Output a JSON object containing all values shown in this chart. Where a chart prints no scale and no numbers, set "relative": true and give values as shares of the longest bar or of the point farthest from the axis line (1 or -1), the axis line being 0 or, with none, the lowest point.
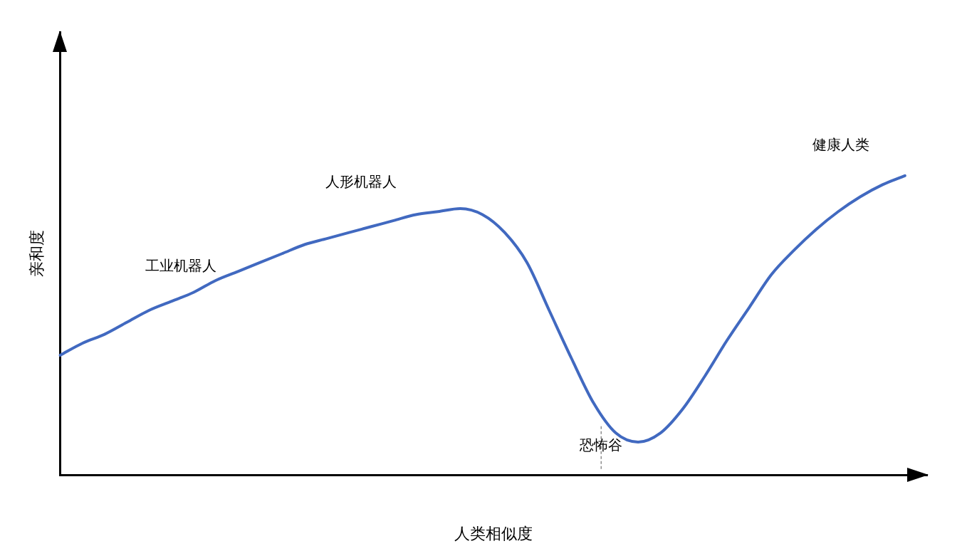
{
  "chart_data": {
    "type": "line",
    "relative": true,
    "xlabel": "人类相似度",
    "ylabel": "亲和度",
    "color": "#4169c0",
    "categories": [
      null,
      null,
      null,
      null,
      null,
      null,
      null,
      null,
      null,
      null,
      null,
      null,
      null,
      null,
      null,
      null,
      null,
      null,
      null,
      null,
      null,
      null,
      null,
      null,
      null,
      null,
      null,
      null,
      null,
      null,
      null,
      null,
      null,
      null,
      null,
      null,
      null,
      null,
      null,
      null
    ],
    "values": [
      0.4,
      0.44,
      0.47,
      0.51,
      0.55,
      0.58,
      0.61,
      0.65,
      0.68,
      0.71,
      0.74,
      0.77,
      0.79,
      0.81,
      0.83,
      0.85,
      0.87,
      0.88,
      0.89,
      0.87,
      0.81,
      0.71,
      0.55,
      0.39,
      0.24,
      0.14,
      0.11,
      0.14,
      0.22,
      0.33,
      0.45,
      0.56,
      0.67,
      0.75,
      0.82,
      0.88,
      0.93,
      0.97,
      1,
      null
    ],
    "annotations": [
      "工业机器人",
      "人形机器人",
      "恐怖谷",
      "健康人类"
    ],
    "grid": false,
    "legend": false,
    "marker": "none",
    "line_style": "solid"
  }
}
